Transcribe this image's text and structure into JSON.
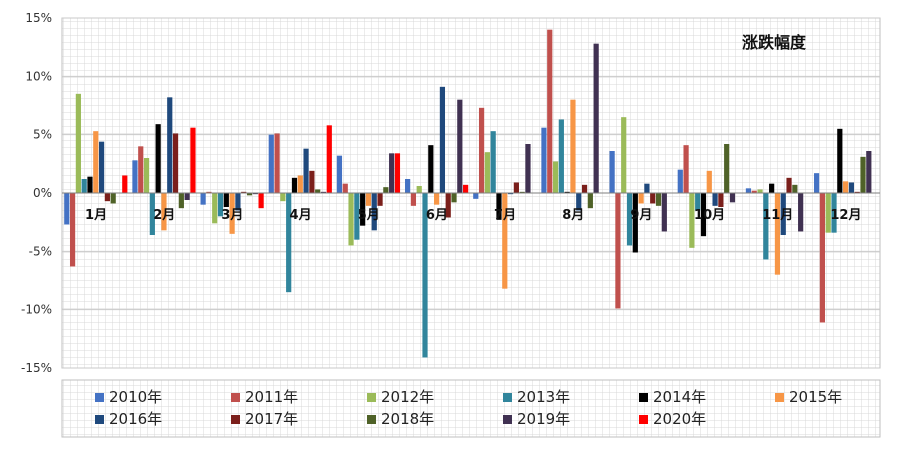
{
  "chart_data": {
    "type": "bar",
    "title": "涨跌幅度",
    "categories": [
      "1月",
      "2月",
      "3月",
      "4月",
      "5月",
      "6月",
      "7月",
      "8月",
      "9月",
      "10月",
      "11月",
      "12月"
    ],
    "y_ticks": [
      "15%",
      "10%",
      "5%",
      "0%",
      "-5%",
      "-10%",
      "-15%"
    ],
    "ylim": [
      -15,
      15
    ],
    "unit": "%",
    "grid": true,
    "legend_position": "bottom",
    "series": [
      {
        "name": "2010年",
        "color": "#4472C4",
        "values": [
          -2.7,
          2.8,
          -1.0,
          5.0,
          3.2,
          1.2,
          -0.5,
          5.6,
          3.6,
          2.0,
          0.4,
          1.7
        ]
      },
      {
        "name": "2011年",
        "color": "#C0504D",
        "values": [
          -6.3,
          4.0,
          0.1,
          5.1,
          0.8,
          -1.1,
          7.3,
          14.0,
          -9.9,
          4.1,
          0.2,
          -11.1
        ]
      },
      {
        "name": "2012年",
        "color": "#9BBB59",
        "values": [
          8.5,
          3.0,
          -2.6,
          -0.7,
          -4.5,
          0.6,
          3.5,
          2.7,
          6.5,
          -4.7,
          0.3,
          -3.4
        ]
      },
      {
        "name": "2013年",
        "color": "#31859C",
        "values": [
          1.2,
          -3.6,
          -2.0,
          -8.5,
          -4.0,
          -14.1,
          5.3,
          6.3,
          -4.5,
          -1.5,
          -5.7,
          -3.4
        ]
      },
      {
        "name": "2014年",
        "color": "#000000",
        "values": [
          1.4,
          5.9,
          -1.2,
          1.3,
          -2.8,
          4.1,
          -2.3,
          0.1,
          -5.1,
          -3.7,
          0.8,
          5.5
        ]
      },
      {
        "name": "2015年",
        "color": "#F79646",
        "values": [
          5.3,
          -3.2,
          -3.5,
          1.5,
          -1.1,
          -1.0,
          -8.2,
          8.0,
          -0.9,
          1.9,
          -7.0,
          1.0
        ]
      },
      {
        "name": "2016年",
        "color": "#1F497D",
        "values": [
          4.4,
          8.2,
          -1.5,
          3.8,
          -3.2,
          9.1,
          -0.1,
          -1.5,
          0.8,
          -1.1,
          -3.6,
          0.9
        ]
      },
      {
        "name": "2017年",
        "color": "#7B1F1B",
        "values": [
          -0.7,
          5.1,
          0.1,
          1.9,
          -1.1,
          -2.1,
          0.9,
          0.7,
          -0.9,
          -1.2,
          1.3,
          0.1
        ]
      },
      {
        "name": "2018年",
        "color": "#4F6228",
        "values": [
          -0.9,
          -1.3,
          -0.2,
          0.3,
          0.5,
          -0.8,
          0.1,
          -1.3,
          -1.1,
          4.2,
          0.7,
          3.1
        ]
      },
      {
        "name": "2019年",
        "color": "#403152",
        "values": [
          0.0,
          -0.6,
          -0.1,
          0.1,
          3.4,
          8.0,
          4.2,
          12.8,
          -3.3,
          -0.8,
          -3.3,
          3.6
        ]
      },
      {
        "name": "2020年",
        "color": "#FF0000",
        "values": [
          1.5,
          5.6,
          -1.3,
          5.8,
          3.4,
          0.7,
          0,
          0,
          0,
          0,
          0,
          0
        ]
      }
    ]
  }
}
